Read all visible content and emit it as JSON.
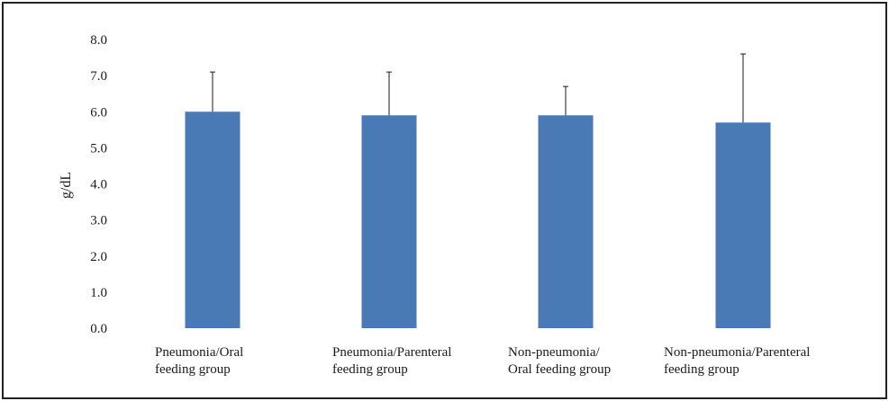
{
  "chart_data": {
    "type": "bar",
    "ylabel": "g/dL",
    "xlabel": "",
    "ylim": [
      0,
      8
    ],
    "yticks": [
      "0.0",
      "1.0",
      "2.0",
      "3.0",
      "4.0",
      "5.0",
      "6.0",
      "7.0",
      "8.0"
    ],
    "grid": false,
    "bar_color": "#4a7ab5",
    "categories": [
      [
        "Pneumonia/Oral",
        "feeding group"
      ],
      [
        "Pneumonia/Parenteral",
        "feeding group"
      ],
      [
        "Non-pneumonia/",
        "Oral feeding group"
      ],
      [
        "Non-pneumonia/Parenteral",
        "feeding group"
      ]
    ],
    "values": [
      6.0,
      5.9,
      5.9,
      5.7
    ],
    "error_upper": [
      1.1,
      1.2,
      0.8,
      1.9
    ]
  }
}
